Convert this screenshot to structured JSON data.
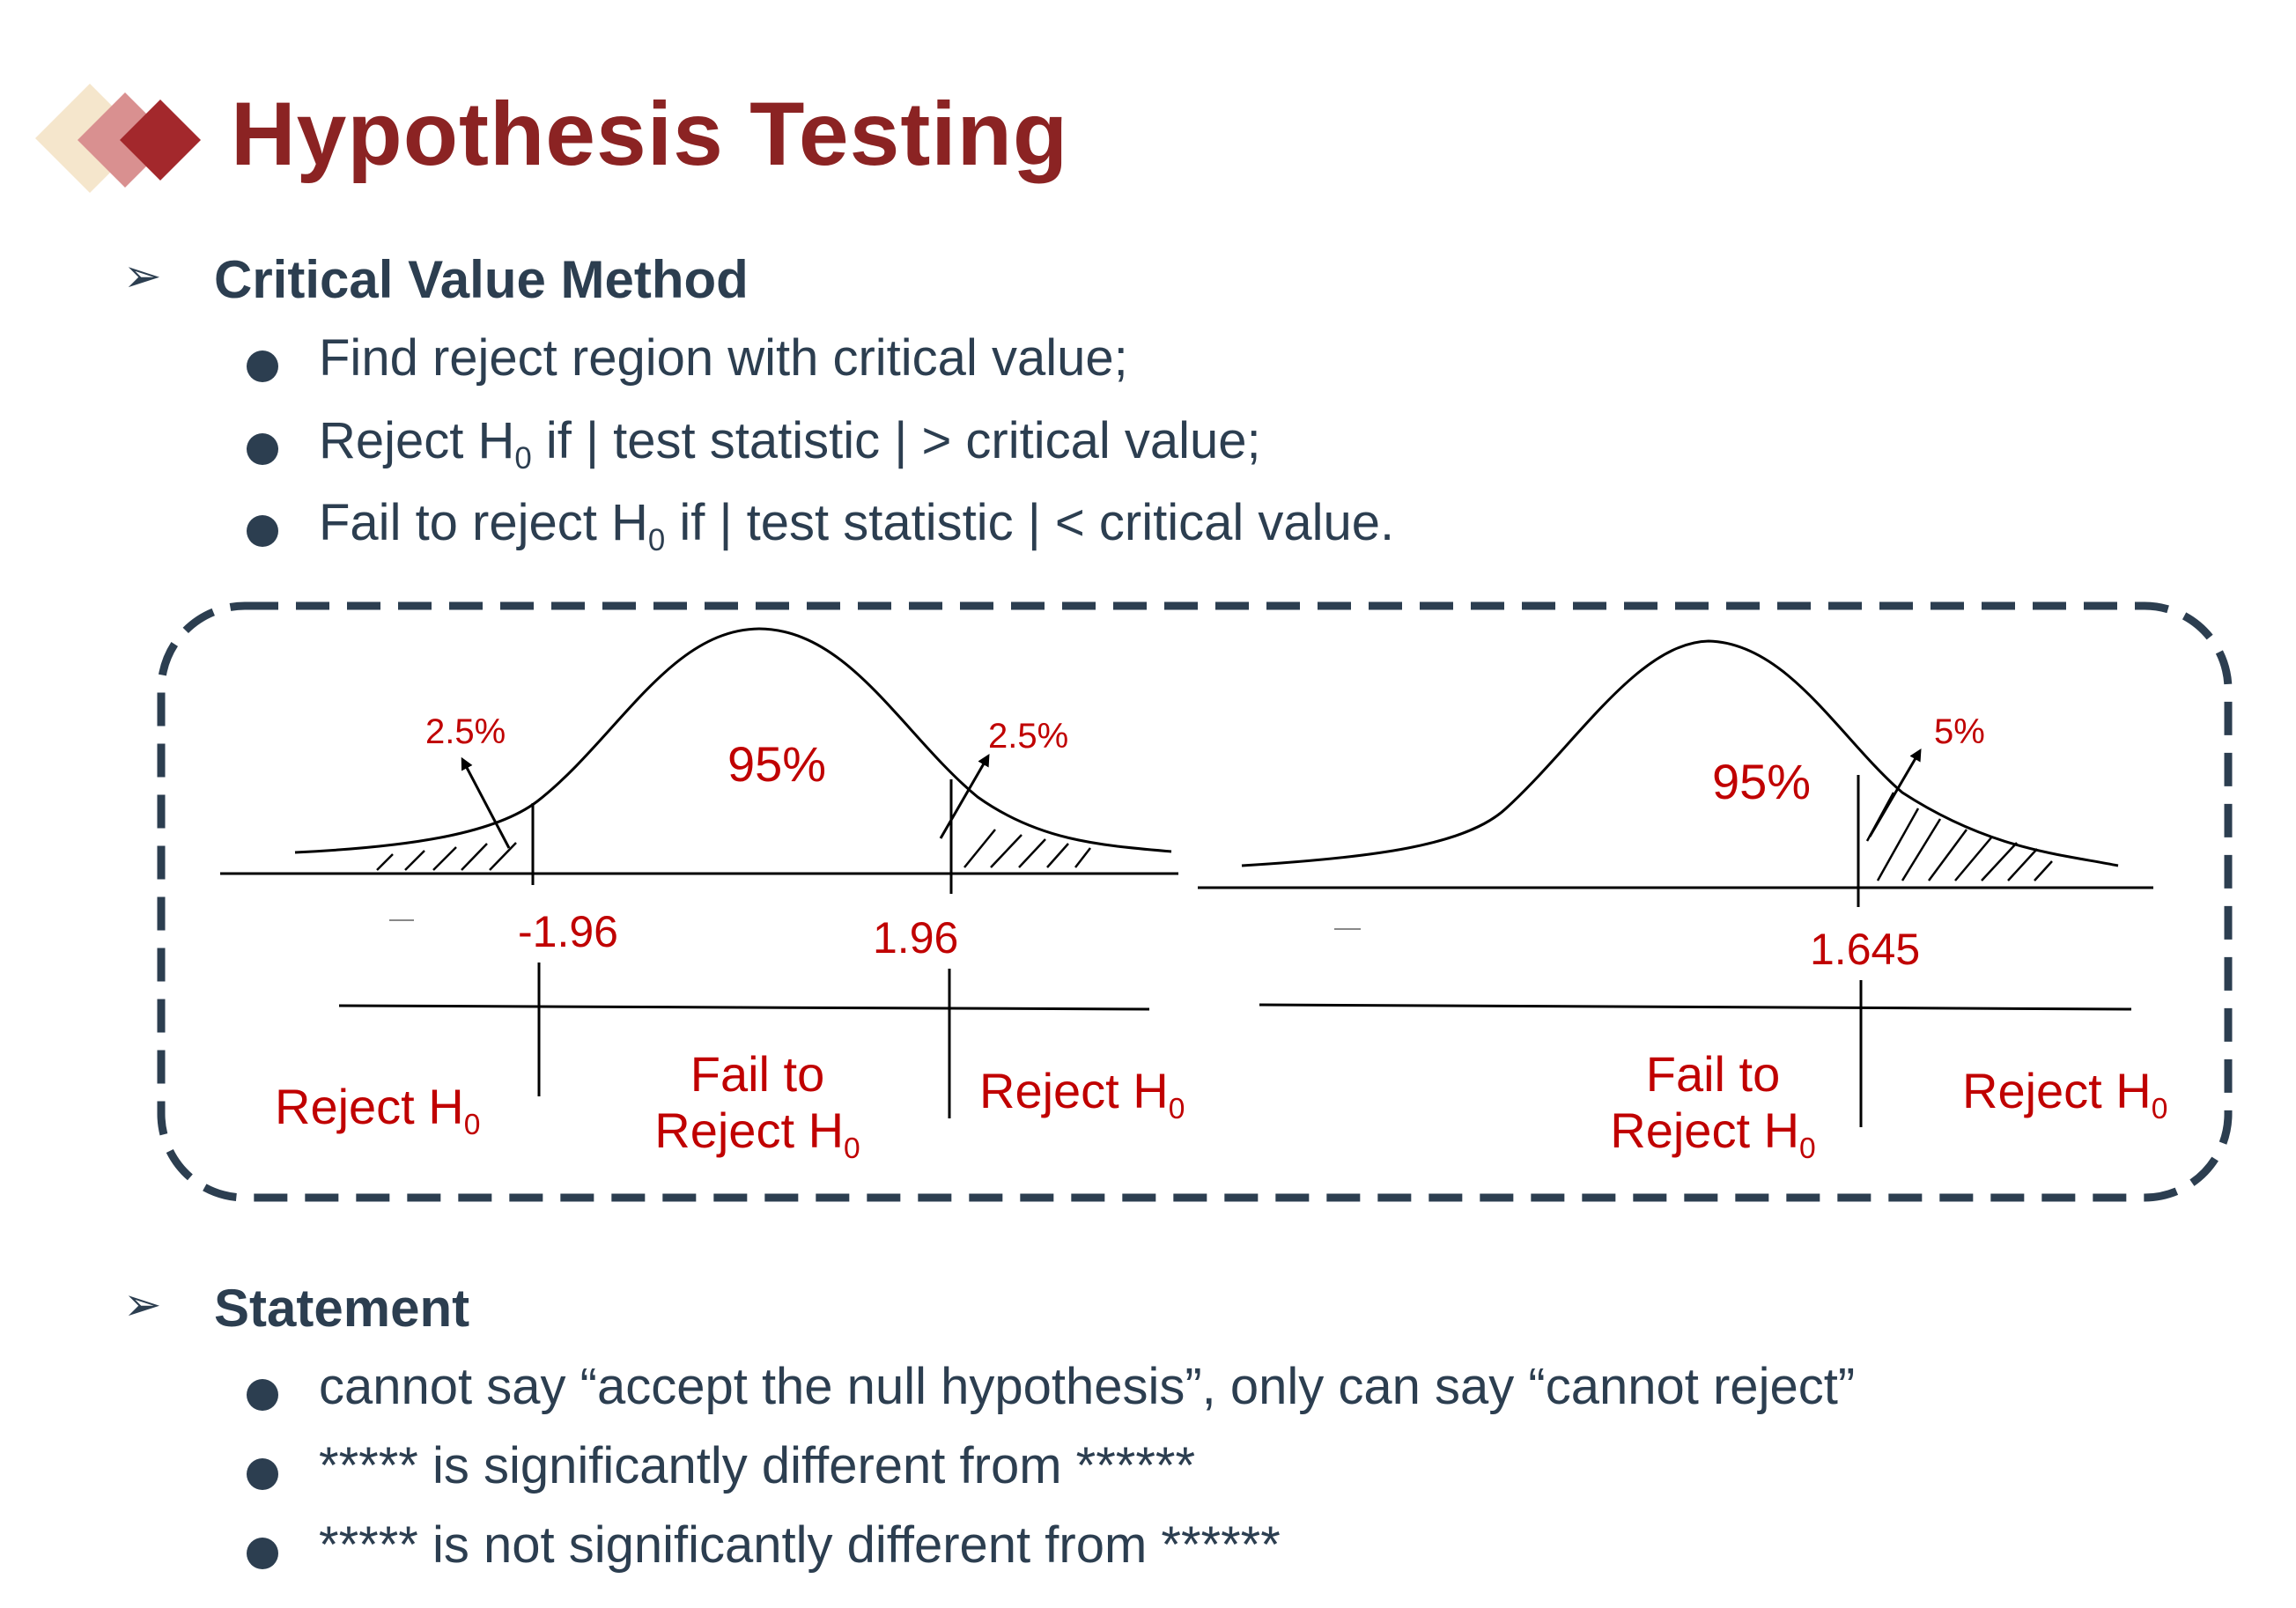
{
  "title": "Hypothesis Testing",
  "sections": [
    {
      "heading": "Critical Value Method",
      "bullets": [
        {
          "parts": [
            "Find reject region with critical value;"
          ]
        },
        {
          "parts": [
            "Reject H",
            "0",
            " if | test statistic | > critical value;"
          ]
        },
        {
          "parts": [
            "Fail to reject H",
            "0",
            " if | test statistic | < critical value."
          ]
        }
      ]
    },
    {
      "heading": "Statement",
      "bullets": [
        {
          "parts": [
            "cannot say “accept the null hypothesis”, only can say “cannot reject”"
          ]
        },
        {
          "parts": [
            "***** is significantly different from ******"
          ]
        },
        {
          "parts": [
            "***** is not significantly different from ******"
          ]
        }
      ]
    }
  ],
  "diagram": {
    "two_tailed": {
      "left_tail": "2.5%",
      "center": "95%",
      "right_tail": "2.5%",
      "left_critical": "-1.96",
      "right_critical": "1.96",
      "reject_left": {
        "text": "Reject H",
        "sub": "0"
      },
      "fail_line1": "Fail to",
      "fail_line2": {
        "text": "Reject H",
        "sub": "0"
      },
      "reject_right": {
        "text": "Reject H",
        "sub": "0"
      }
    },
    "one_tailed": {
      "center": "95%",
      "right_tail": "5%",
      "critical": "1.645",
      "fail_line1": "Fail to",
      "fail_line2": {
        "text": "Reject H",
        "sub": "0"
      },
      "reject_right": {
        "text": "Reject H",
        "sub": "0"
      }
    }
  },
  "colors": {
    "title": "#8b2323",
    "text": "#2c3e50",
    "accent_red": "#c00000",
    "logo_light": "#f5e6cc",
    "logo_mid": "#d99090",
    "logo_dark": "#a3282c"
  }
}
